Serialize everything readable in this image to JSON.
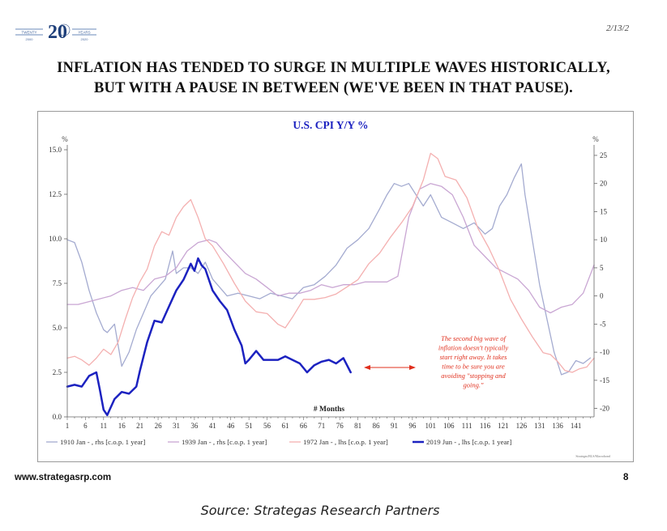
{
  "header": {
    "logo_text": "20",
    "logo_left": "TWENTY",
    "logo_right": "YEARS",
    "logo_year_left": "2000",
    "logo_year_right": "2020",
    "date": "2/13/2",
    "title_line1": "INFLATION HAS TENDED TO SURGE IN MULTIPLE WAVES HISTORICALLY,",
    "title_line2": "BUT WITH A PAUSE IN BETWEEN (WE'VE BEEN IN THAT PAUSE)."
  },
  "footer": {
    "url": "www.strategasrp.com",
    "page": "8",
    "source": "Source: Strategas Research Partners"
  },
  "colors": {
    "s1910": "#a4abd0",
    "s1939": "#c9a6d3",
    "s1972": "#f4b0b0",
    "s2019": "#1c22c0",
    "annotation": "#e0301e",
    "title": "#1c22c0"
  },
  "chart_data": {
    "type": "line",
    "title": "U.S. CPI Y/Y %",
    "left_axis_unit": "%",
    "right_axis_unit": "%",
    "xlabel": "# Months",
    "x_ticks": [
      1,
      6,
      11,
      16,
      21,
      26,
      31,
      36,
      41,
      46,
      51,
      56,
      61,
      66,
      71,
      76,
      81,
      86,
      91,
      96,
      101,
      106,
      111,
      116,
      121,
      126,
      131,
      136,
      141
    ],
    "x_range": [
      1,
      146
    ],
    "left_ylim": [
      0,
      15
    ],
    "left_ticks": [
      "0.0",
      "2.5",
      "5.0",
      "7.5",
      "10.0",
      "12.5",
      "15.0"
    ],
    "left_tick_values": [
      0,
      2.5,
      5,
      7.5,
      10,
      12.5,
      15
    ],
    "right_ylim": [
      -21.5,
      26
    ],
    "right_ticks": [
      "-20",
      "-15",
      "-10",
      "-5",
      "0",
      "5",
      "10",
      "15",
      "20",
      "25"
    ],
    "right_tick_values": [
      -20,
      -15,
      -10,
      -5,
      0,
      5,
      10,
      15,
      20,
      25
    ],
    "annotation": [
      "The second big wave of",
      "inflation doesn't typically",
      "start right away. It takes",
      "time to be sure you are",
      "avoiding \"stopping and",
      "going.\""
    ],
    "credit": "Strategas/BLS/Macrobond",
    "series": [
      {
        "name": "1910 Jan - , rhs [c.o.p. 1 year]",
        "key": "s1910",
        "axis": "right",
        "width": 1.3,
        "x": [
          1,
          3,
          5,
          7,
          9,
          11,
          12,
          14,
          16,
          18,
          20,
          22,
          24,
          26,
          28,
          30,
          31,
          33,
          35,
          37,
          39,
          41,
          43,
          45,
          48,
          51,
          54,
          57,
          60,
          63,
          66,
          69,
          72,
          75,
          78,
          81,
          84,
          87,
          89,
          91,
          93,
          95,
          97,
          99,
          101,
          104,
          107,
          110,
          113,
          116,
          118,
          120,
          122,
          124,
          126,
          127,
          129,
          131,
          133,
          135,
          137,
          139,
          141,
          143,
          145
        ],
        "y": [
          10,
          9.5,
          6,
          1,
          -3,
          -6,
          -6.5,
          -5,
          -12.5,
          -10,
          -6,
          -3,
          0,
          1.5,
          3,
          8,
          4,
          5,
          5,
          4,
          6,
          3,
          1.5,
          0,
          0.5,
          0,
          -0.5,
          0.5,
          0,
          -0.5,
          1.5,
          2,
          3.5,
          5.5,
          8.5,
          10,
          12,
          15.5,
          18,
          20,
          19.5,
          20,
          18,
          16,
          18,
          14,
          13,
          12,
          13,
          11,
          12,
          16,
          18,
          21,
          23.5,
          18,
          10,
          2,
          -4,
          -10,
          -14,
          -13.5,
          -11.5,
          -12,
          -11
        ]
      },
      {
        "name": "1939 Jan - , rhs [c.o.p. 1 year]",
        "key": "s1939",
        "axis": "right",
        "width": 1.3,
        "x": [
          1,
          4,
          7,
          10,
          13,
          16,
          19,
          22,
          25,
          28,
          31,
          34,
          37,
          40,
          42,
          44,
          47,
          50,
          53,
          56,
          59,
          62,
          65,
          68,
          71,
          74,
          77,
          80,
          83,
          86,
          89,
          92,
          95,
          98,
          101,
          104,
          107,
          110,
          113,
          116,
          119,
          122,
          125,
          128,
          131,
          134,
          137,
          140,
          143,
          146
        ],
        "y": [
          -1.5,
          -1.5,
          -1,
          -0.5,
          0,
          1,
          1.5,
          1,
          3,
          3.5,
          5,
          8,
          9.5,
          10,
          9.5,
          8,
          6,
          4,
          3,
          1.5,
          0,
          0.5,
          0.5,
          1,
          2,
          1.5,
          2,
          2,
          2.5,
          2.5,
          2.5,
          3.5,
          14,
          19,
          20,
          19.5,
          18,
          14,
          9,
          7,
          5,
          4,
          3,
          1,
          -2,
          -3,
          -2,
          -1.5,
          0.5,
          5.5
        ]
      },
      {
        "name": "1972 Jan - , lhs [c.o.p. 1 year]",
        "key": "s1972",
        "axis": "left",
        "width": 1.3,
        "x": [
          1,
          3,
          5,
          7,
          9,
          11,
          13,
          15,
          17,
          19,
          21,
          23,
          25,
          27,
          29,
          31,
          33,
          35,
          37,
          39,
          41,
          44,
          47,
          50,
          53,
          56,
          59,
          61,
          63,
          66,
          69,
          72,
          75,
          78,
          81,
          84,
          87,
          90,
          93,
          96,
          99,
          101,
          103,
          105,
          108,
          111,
          114,
          117,
          120,
          123,
          126,
          129,
          132,
          134,
          136,
          138,
          140,
          142,
          144,
          146
        ],
        "y": [
          3.3,
          3.4,
          3.2,
          2.9,
          3.3,
          3.8,
          3.5,
          4.2,
          5.5,
          6.7,
          7.6,
          8.3,
          9.6,
          10.4,
          10.2,
          11.2,
          11.8,
          12.2,
          11.2,
          10,
          9.6,
          8.6,
          7.5,
          6.5,
          5.9,
          5.8,
          5.2,
          5,
          5.6,
          6.6,
          6.6,
          6.7,
          6.9,
          7.3,
          7.7,
          8.6,
          9.2,
          10.1,
          10.9,
          11.8,
          13.3,
          14.8,
          14.5,
          13.5,
          13.3,
          12.3,
          10.6,
          9.5,
          8.2,
          6.6,
          5.5,
          4.5,
          3.6,
          3.5,
          3.1,
          2.6,
          2.5,
          2.7,
          2.8,
          3.3
        ]
      },
      {
        "name": "2019 Jun - , lhs [c.o.p. 1 year]",
        "key": "s2019",
        "axis": "left",
        "width": 2.5,
        "x": [
          1,
          3,
          5,
          7,
          9,
          10,
          11,
          12,
          14,
          16,
          18,
          20,
          21,
          23,
          25,
          27,
          29,
          31,
          33,
          35,
          36,
          37,
          38,
          39,
          40,
          41,
          43,
          45,
          47,
          49,
          50,
          51,
          53,
          55,
          57,
          59,
          61,
          63,
          65,
          67,
          69,
          71,
          73,
          75,
          77,
          79
        ],
        "y": [
          1.7,
          1.8,
          1.7,
          2.3,
          2.5,
          1.5,
          0.4,
          0.1,
          1,
          1.4,
          1.3,
          1.7,
          2.6,
          4.2,
          5.4,
          5.3,
          6.2,
          7.1,
          7.7,
          8.6,
          8.2,
          8.9,
          8.5,
          8.3,
          7.7,
          7.1,
          6.5,
          6.0,
          4.9,
          4.0,
          3.0,
          3.2,
          3.7,
          3.2,
          3.2,
          3.2,
          3.4,
          3.2,
          3.0,
          2.5,
          2.9,
          3.1,
          3.2,
          3.0,
          3.3,
          2.5
        ]
      }
    ]
  }
}
